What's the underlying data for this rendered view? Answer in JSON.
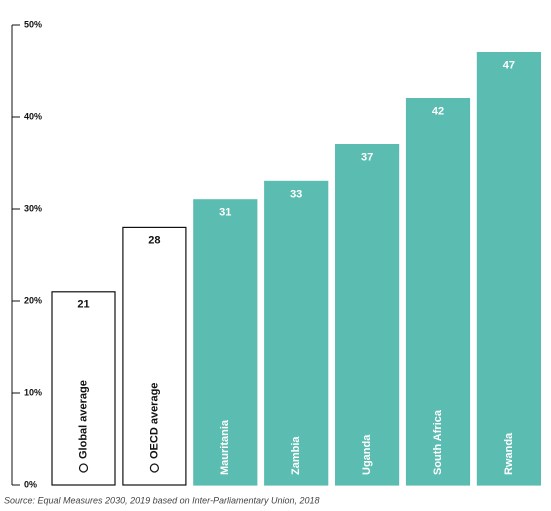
{
  "chart_data": {
    "type": "bar",
    "categories": [
      "Global average",
      "OECD average",
      "Mauritania",
      "Zambia",
      "Uganda",
      "South Africa",
      "Rwanda"
    ],
    "values": [
      21,
      28,
      31,
      33,
      37,
      42,
      47
    ],
    "colors": [
      "#ffffff",
      "#ffffff",
      "#5bbcb1",
      "#5bbcb1",
      "#5bbcb1",
      "#5bbcb1",
      "#5bbcb1"
    ],
    "edge_colors": [
      "#111111",
      "#111111",
      "#5bbcb1",
      "#5bbcb1",
      "#5bbcb1",
      "#5bbcb1",
      "#5bbcb1"
    ],
    "label_colors": [
      "#111111",
      "#111111",
      "#ffffff",
      "#ffffff",
      "#ffffff",
      "#ffffff",
      "#ffffff"
    ],
    "ylim": [
      0,
      50
    ],
    "yticks": [
      {
        "value": 0,
        "label": "0%"
      },
      {
        "value": 10,
        "label": "10%"
      },
      {
        "value": 20,
        "label": "20%"
      },
      {
        "value": 30,
        "label": "30%"
      },
      {
        "value": 40,
        "label": "40%"
      },
      {
        "value": 50,
        "label": "50%"
      }
    ],
    "source": "Source: Equal Measures 2030, 2019 based on Inter-Parliamentary Union, 2018"
  }
}
